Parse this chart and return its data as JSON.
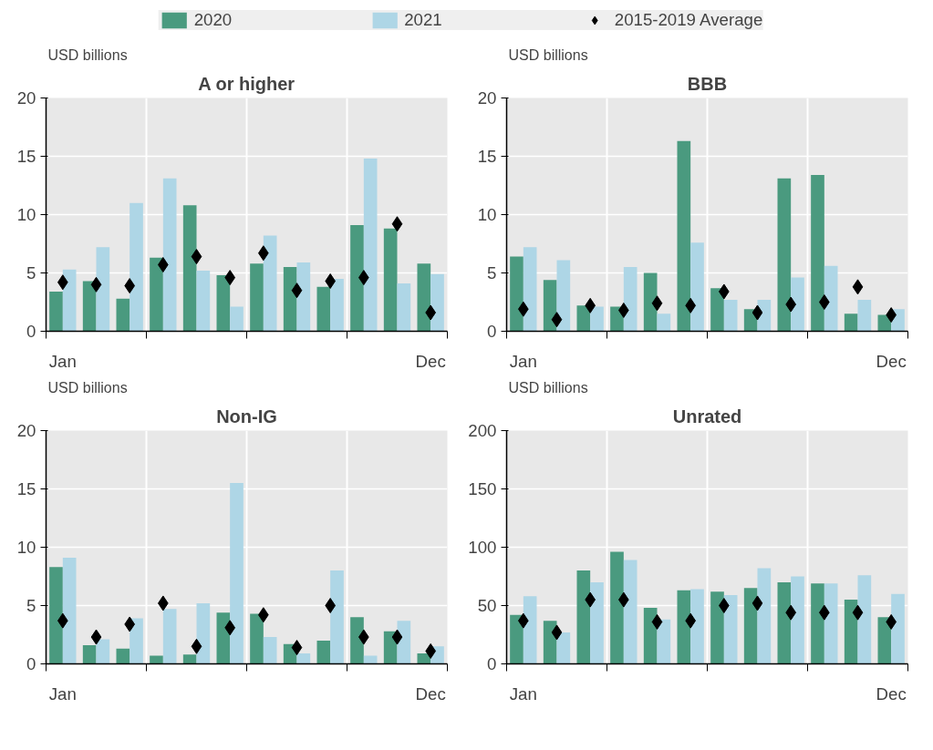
{
  "chart_data": [
    {
      "type": "bar",
      "title": "A or higher",
      "ylabel": "USD billions",
      "categories": [
        "Jan",
        null,
        null,
        null,
        null,
        null,
        null,
        null,
        null,
        null,
        null,
        "Dec"
      ],
      "ylim": [
        0,
        20
      ],
      "yticks": [
        0,
        5,
        10,
        15,
        20
      ],
      "grid": true,
      "legend": "top",
      "series": [
        {
          "name": "2020",
          "color": "#4a9a7f",
          "values": [
            3.4,
            4.3,
            2.8,
            6.3,
            10.8,
            4.8,
            5.8,
            5.5,
            3.8,
            9.1,
            8.8,
            5.8
          ]
        },
        {
          "name": "2021",
          "color": "#aed6e6",
          "values": [
            5.3,
            7.2,
            11.0,
            13.1,
            5.2,
            2.1,
            8.2,
            5.9,
            4.5,
            14.8,
            4.1,
            4.9
          ]
        },
        {
          "name": "2015-2019 Average",
          "color": "#000000",
          "type": "scatter",
          "marker": "diamond",
          "values": [
            4.2,
            4.0,
            3.9,
            5.7,
            6.4,
            4.6,
            6.7,
            3.5,
            4.3,
            4.6,
            9.2,
            1.6
          ]
        }
      ]
    },
    {
      "type": "bar",
      "title": "BBB",
      "ylabel": "USD billions",
      "categories": [
        "Jan",
        null,
        null,
        null,
        null,
        null,
        null,
        null,
        null,
        null,
        null,
        "Dec"
      ],
      "ylim": [
        0,
        20
      ],
      "yticks": [
        0,
        5,
        10,
        15,
        20
      ],
      "grid": true,
      "series": [
        {
          "color": "#4a9a7f",
          "values": [
            6.4,
            4.4,
            2.2,
            2.1,
            5.0,
            16.3,
            3.7,
            1.9,
            13.1,
            13.4,
            1.5,
            1.4
          ]
        },
        {
          "color": "#aed6e6",
          "values": [
            7.2,
            6.1,
            2.1,
            5.5,
            1.5,
            7.6,
            2.7,
            2.7,
            4.6,
            5.6,
            2.7,
            1.9
          ]
        },
        {
          "color": "#000000",
          "type": "scatter",
          "marker": "diamond",
          "values": [
            1.9,
            1.0,
            2.2,
            1.8,
            2.4,
            2.2,
            3.4,
            1.6,
            2.3,
            2.5,
            3.8,
            1.4
          ]
        }
      ]
    },
    {
      "type": "bar",
      "title": "Non-IG",
      "ylabel": "USD billions",
      "categories": [
        "Jan",
        null,
        null,
        null,
        null,
        null,
        null,
        null,
        null,
        null,
        null,
        "Dec"
      ],
      "ylim": [
        0,
        20
      ],
      "yticks": [
        0,
        5,
        10,
        15,
        20
      ],
      "grid": true,
      "series": [
        {
          "color": "#4a9a7f",
          "values": [
            8.3,
            1.6,
            1.3,
            0.7,
            0.8,
            4.4,
            4.3,
            1.7,
            2.0,
            4.0,
            2.8,
            0.9
          ]
        },
        {
          "color": "#aed6e6",
          "values": [
            9.1,
            2.1,
            3.9,
            4.7,
            5.2,
            15.5,
            2.3,
            0.9,
            8.0,
            0.7,
            3.7,
            1.5
          ]
        },
        {
          "color": "#000000",
          "type": "scatter",
          "marker": "diamond",
          "values": [
            3.7,
            2.3,
            3.4,
            5.2,
            1.5,
            3.1,
            4.2,
            1.4,
            5.0,
            2.3,
            2.3,
            1.1
          ]
        }
      ]
    },
    {
      "type": "bar",
      "title": "Unrated",
      "ylabel": "USD billions",
      "categories": [
        "Jan",
        null,
        null,
        null,
        null,
        null,
        null,
        null,
        null,
        null,
        null,
        "Dec"
      ],
      "ylim": [
        0,
        200
      ],
      "yticks": [
        0,
        50,
        100,
        150,
        200
      ],
      "grid": true,
      "series": [
        {
          "color": "#4a9a7f",
          "values": [
            42,
            37,
            80,
            96,
            48,
            63,
            62,
            65,
            70,
            69,
            55,
            40
          ]
        },
        {
          "color": "#aed6e6",
          "values": [
            58,
            27,
            70,
            89,
            38,
            64,
            59,
            82,
            75,
            69,
            76,
            60
          ]
        },
        {
          "color": "#000000",
          "type": "scatter",
          "marker": "diamond",
          "values": [
            37,
            27,
            55,
            55,
            36,
            37,
            50,
            52,
            44,
            44,
            44,
            36
          ]
        }
      ]
    }
  ]
}
